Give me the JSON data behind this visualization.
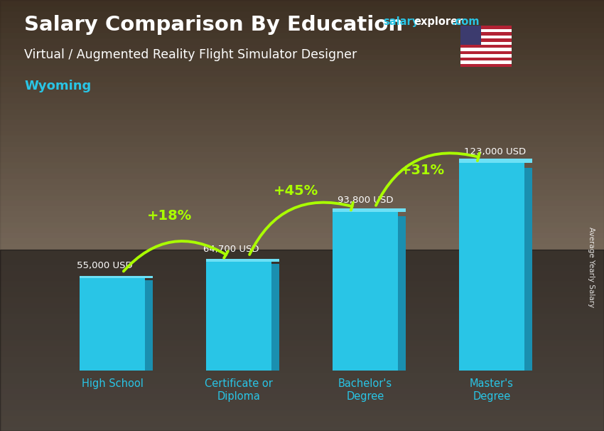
{
  "title_main": "Salary Comparison By Education",
  "title_sub": "Virtual / Augmented Reality Flight Simulator Designer",
  "title_location": "Wyoming",
  "ylabel_rotated": "Average Yearly Salary",
  "categories": [
    "High School",
    "Certificate or\nDiploma",
    "Bachelor's\nDegree",
    "Master's\nDegree"
  ],
  "values": [
    55000,
    64700,
    93800,
    123000
  ],
  "value_labels": [
    "55,000 USD",
    "64,700 USD",
    "93,800 USD",
    "123,000 USD"
  ],
  "pct_changes": [
    "+18%",
    "+45%",
    "+31%"
  ],
  "bar_color_main": "#29c5e6",
  "bar_color_right": "#1a8fb0",
  "bar_color_top": "#6de0f5",
  "bar_width": 0.52,
  "bg_top": "#b8a898",
  "bg_bot": "#5a4a3a",
  "title_color": "#ffffff",
  "sub_color": "#ffffff",
  "loc_color": "#29c5e6",
  "pct_color": "#aaff00",
  "value_label_color": "#ffffff",
  "xlabel_color": "#29c5e6",
  "arrow_color": "#aaff00",
  "ylim": [
    0,
    148000
  ],
  "figsize": [
    8.5,
    6.06
  ],
  "salary_word_color": "#29c5e6",
  "explorer_color": "#ffffff",
  "com_color": "#29c5e6"
}
